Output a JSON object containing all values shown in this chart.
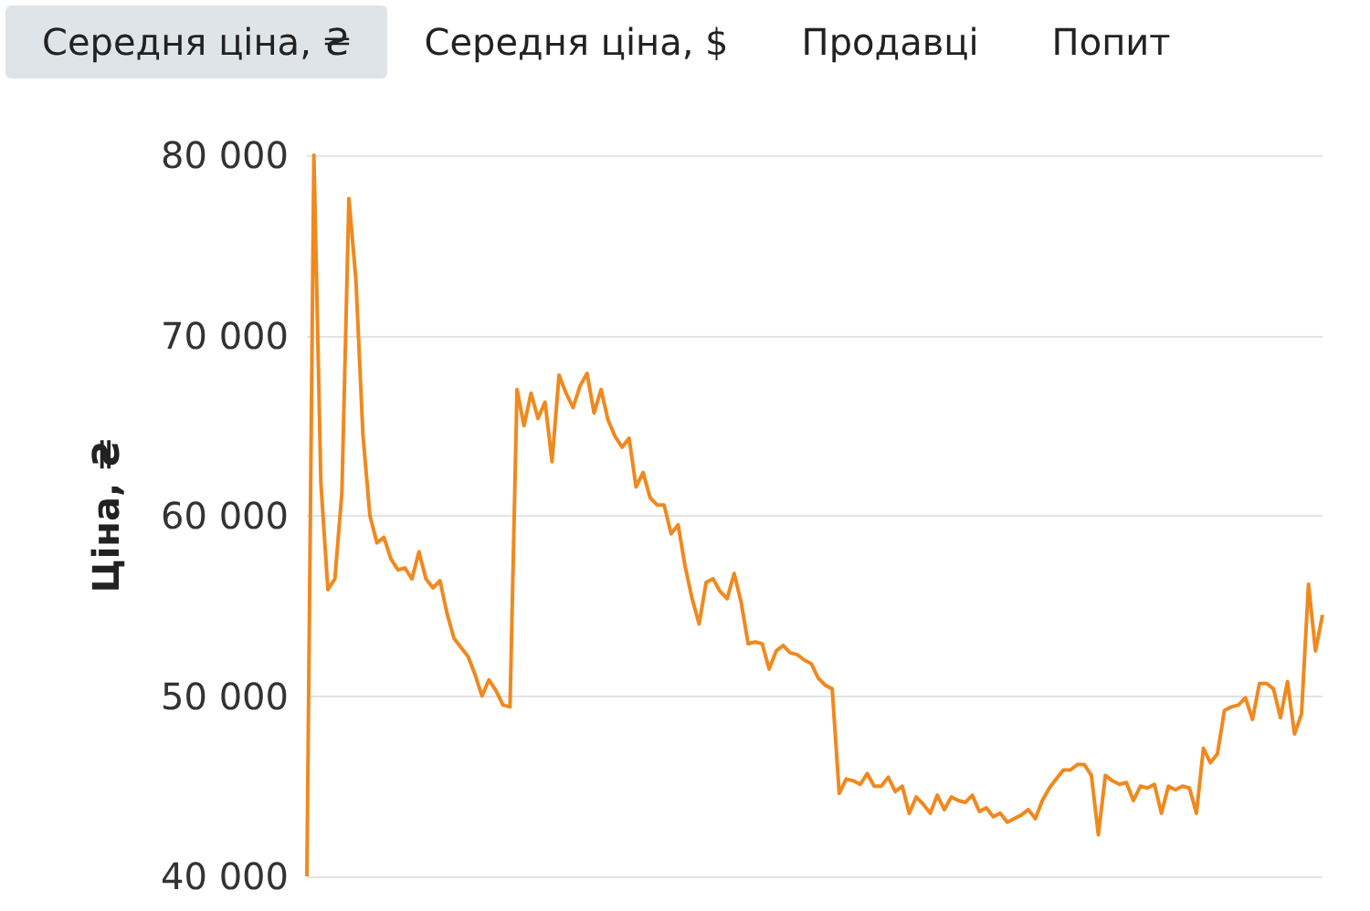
{
  "chart_data": {
    "type": "line",
    "ylabel": "Ціна, ₴",
    "annotations": [
      "Середня ціна, ₴",
      "Середня ціна, $",
      "Продавці",
      "Попит"
    ],
    "categories": [
      null,
      null,
      null,
      null,
      null,
      null,
      null,
      null,
      null,
      null,
      null,
      null,
      null,
      null,
      null,
      null,
      null,
      null,
      null,
      null,
      null,
      null,
      null,
      null,
      null,
      null,
      null,
      null,
      null,
      null,
      null,
      null,
      null,
      null,
      null,
      null,
      null,
      null,
      null,
      null,
      null,
      null,
      null,
      null,
      null,
      null,
      null,
      null,
      null,
      null,
      null,
      null,
      null,
      null,
      null,
      null,
      null,
      null,
      null,
      null,
      null,
      null,
      null,
      null,
      null,
      null,
      null,
      null,
      null,
      null,
      null,
      null,
      null,
      null,
      null,
      null,
      null,
      null,
      null,
      null,
      null,
      null,
      null,
      null,
      null,
      null,
      null,
      null,
      null,
      null,
      null,
      null,
      null,
      null,
      null,
      null,
      null,
      null,
      null,
      null,
      null,
      null,
      null,
      null,
      null,
      null,
      null,
      null,
      null,
      null,
      null,
      null,
      null,
      null,
      null,
      null,
      null,
      null,
      null,
      null,
      null,
      null,
      null,
      null,
      null,
      null,
      null,
      null,
      null,
      null,
      null,
      null,
      null,
      null,
      null,
      null,
      null,
      null,
      null,
      null,
      null,
      null,
      null,
      null,
      null,
      null
    ],
    "series": [
      {
        "color": "#f0891e",
        "values": [
          40000,
          80000,
          61800,
          55900,
          56500,
          61300,
          77600,
          73100,
          64500,
          60000,
          58500,
          58800,
          57600,
          57000,
          57100,
          56500,
          58000,
          56500,
          56000,
          56400,
          54600,
          53200,
          52700,
          52200,
          51200,
          50000,
          50900,
          50300,
          49500,
          49400,
          67000,
          65000,
          66800,
          65400,
          66300,
          63000,
          67800,
          66800,
          66000,
          67200,
          67900,
          65700,
          67000,
          65300,
          64400,
          63800,
          64300,
          61600,
          62400,
          61000,
          60600,
          60600,
          59000,
          59500,
          57200,
          55400,
          54000,
          56300,
          56500,
          55800,
          55400,
          56800,
          55200,
          52900,
          53000,
          52900,
          51500,
          52500,
          52800,
          52400,
          52300,
          52000,
          51800,
          51000,
          50600,
          50400,
          44600,
          45400,
          45300,
          45100,
          45700,
          45000,
          45000,
          45500,
          44700,
          45000,
          43500,
          44400,
          44000,
          43500,
          44500,
          43700,
          44400,
          44200,
          44100,
          44500,
          43600,
          43800,
          43300,
          43500,
          43000,
          43200,
          43400,
          43700,
          43200,
          44200,
          44900,
          45400,
          45900,
          45900,
          46200,
          46200,
          45600,
          42300,
          45600,
          45300,
          45100,
          45200,
          44200,
          45000,
          44900,
          45100,
          43500,
          45000,
          44800,
          45000,
          44900,
          43500,
          47100,
          46300,
          46800,
          49200,
          49400,
          49500,
          49900,
          48700,
          50700,
          50700,
          50400,
          48800,
          50800,
          47900,
          49000,
          56200,
          52500,
          54500
        ]
      }
    ],
    "ylim": [
      40000,
      80000
    ],
    "yticks": [
      {
        "value": 40000,
        "label": "40 000"
      },
      {
        "value": 50000,
        "label": "50 000"
      },
      {
        "value": 60000,
        "label": "60 000"
      },
      {
        "value": 70000,
        "label": "70 000"
      },
      {
        "value": 80000,
        "label": "80 000"
      }
    ],
    "grid": "y",
    "line_style": "solid",
    "tick_labels": "y"
  }
}
